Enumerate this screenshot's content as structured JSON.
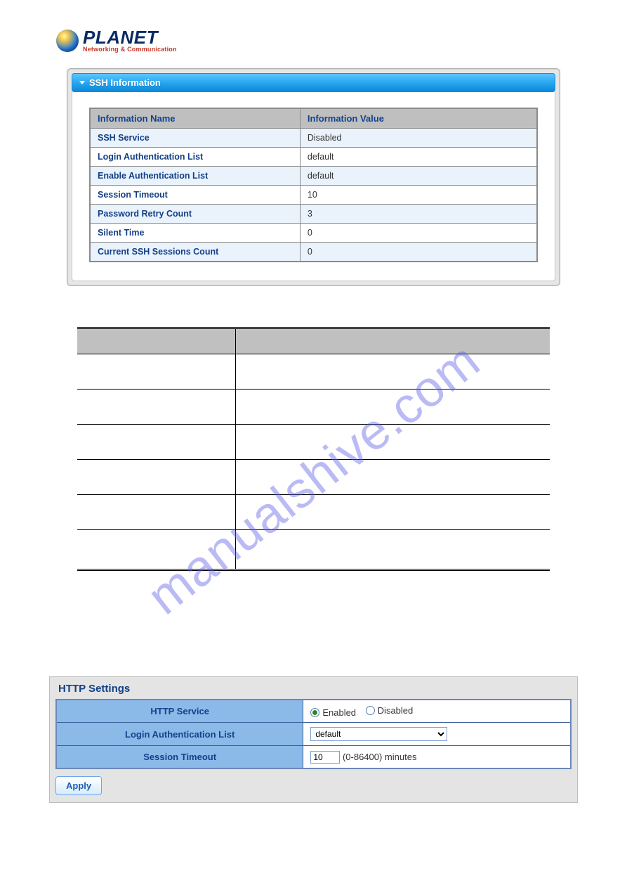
{
  "logo": {
    "brand": "PLANET",
    "tagline": "Networking & Communication"
  },
  "panel1": {
    "title": "SSH Information",
    "headers": {
      "name": "Information Name",
      "value": "Information Value"
    },
    "rows": [
      {
        "name": "SSH Service",
        "value": "Disabled"
      },
      {
        "name": "Login Authentication List",
        "value": "default"
      },
      {
        "name": "Enable Authentication List",
        "value": "default"
      },
      {
        "name": "Session Timeout",
        "value": "10"
      },
      {
        "name": "Password Retry Count",
        "value": "3"
      },
      {
        "name": "Silent Time",
        "value": "0"
      },
      {
        "name": "Current SSH Sessions Count",
        "value": "0"
      }
    ]
  },
  "watermark": "manualshive.com",
  "panel2": {
    "title": "HTTP Settings",
    "rows": {
      "service": {
        "label": "HTTP Service",
        "opt_enabled": "Enabled",
        "opt_disabled": "Disabled",
        "selected": "enabled"
      },
      "auth": {
        "label": "Login Authentication List",
        "value": "default"
      },
      "timeout": {
        "label": "Session Timeout",
        "value": "10",
        "hint": "(0-86400) minutes"
      }
    },
    "apply": "Apply"
  }
}
